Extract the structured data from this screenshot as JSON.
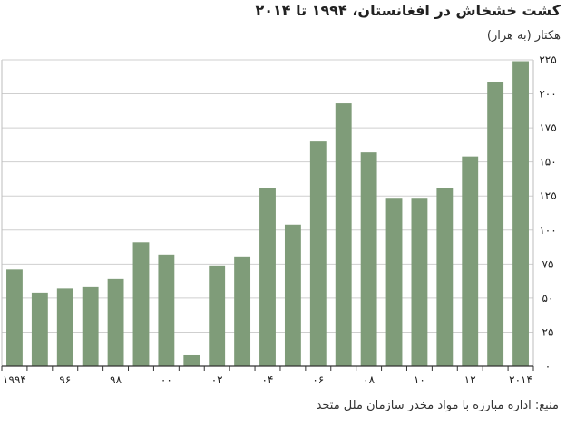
{
  "header": {
    "title": "کشت خشخاش در افغانستان، ۱۹۹۴ تا ۲۰۱۴",
    "subtitle": "هکتار (به هزار)"
  },
  "footer": {
    "source": "منبع: اداره مبارزه با مواد مخدر سازمان ملل متحد"
  },
  "chart_data": {
    "type": "bar",
    "title": "کشت خشخاش در افغانستان، ۱۹۹۴ تا ۲۰۱۴",
    "ylabel": "هکتار (به هزار)",
    "xlabel": "",
    "ylim": [
      0,
      225
    ],
    "y_ticks": [
      0,
      25,
      50,
      75,
      100,
      125,
      150,
      175,
      200,
      225
    ],
    "y_tick_labels": [
      "۰",
      "۲۵",
      "۵۰",
      "۷۵",
      "۱۰۰",
      "۱۲۵",
      "۱۵۰",
      "۱۷۵",
      "۲۰۰",
      "۲۲۵"
    ],
    "y_axis_side": "right",
    "grid": true,
    "color": "#7f9c79",
    "categories": [
      1994,
      1995,
      1996,
      1997,
      1998,
      1999,
      2000,
      2001,
      2002,
      2003,
      2004,
      2005,
      2006,
      2007,
      2008,
      2009,
      2010,
      2011,
      2012,
      2013,
      2014
    ],
    "values": [
      71,
      54,
      57,
      58,
      64,
      91,
      82,
      8,
      74,
      80,
      131,
      104,
      165,
      193,
      157,
      123,
      123,
      131,
      154,
      209,
      224
    ],
    "x_tick_labels": [
      {
        "category": 1994,
        "label": "۱۹۹۴"
      },
      {
        "category": 1996,
        "label": "۹۶"
      },
      {
        "category": 1998,
        "label": "۹۸"
      },
      {
        "category": 2000,
        "label": "۰۰"
      },
      {
        "category": 2002,
        "label": "۰۲"
      },
      {
        "category": 2004,
        "label": "۰۴"
      },
      {
        "category": 2006,
        "label": "۰۶"
      },
      {
        "category": 2008,
        "label": "۰۸"
      },
      {
        "category": 2010,
        "label": "۱۰"
      },
      {
        "category": 2012,
        "label": "۱۲"
      },
      {
        "category": 2014,
        "label": "۲۰۱۴"
      }
    ]
  }
}
